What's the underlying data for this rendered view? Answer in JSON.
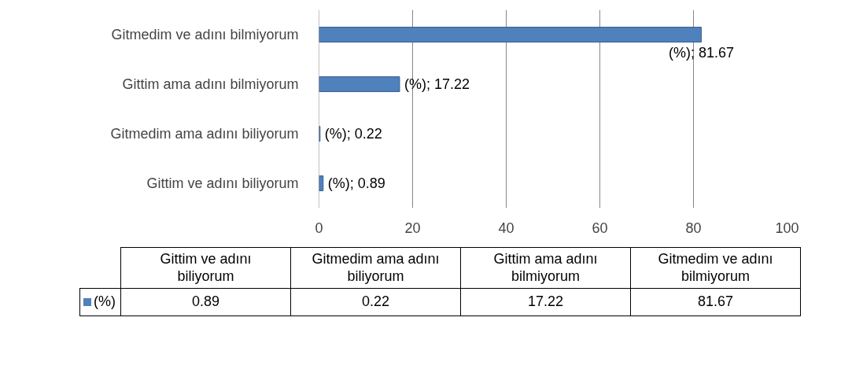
{
  "chart_data": {
    "type": "bar",
    "orientation": "horizontal",
    "categories": [
      "Gitmedim ve adını bilmiyorum",
      "Gittim ama adını bilmiyorum",
      "Gitmedim ama adını biliyorum",
      "Gittim ve adını biliyorum"
    ],
    "series": [
      {
        "name": "(%)",
        "color": "#4f81bd",
        "values": [
          81.67,
          17.22,
          0.22,
          0.89
        ],
        "value_labels": [
          "(%); 81.67",
          "(%); 17.22",
          "(%); 0.22",
          "(%); 0.89"
        ]
      }
    ],
    "annotations": [
      "0.89",
      "0.22",
      "17.22",
      "81.67"
    ],
    "xlim": [
      0,
      100
    ],
    "xticks": [
      0,
      20,
      40,
      60,
      80,
      100
    ],
    "grid": "x",
    "legend": "bottom"
  }
}
